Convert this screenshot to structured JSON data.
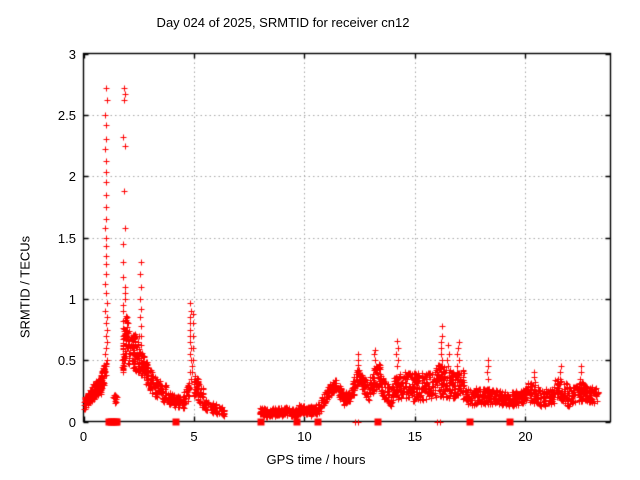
{
  "chart_data": {
    "type": "scatter",
    "title": "Day 024 of 2025, SRMTID for receiver cn12",
    "xlabel": "GPS time / hours",
    "ylabel": "SRMTID / TECUs",
    "xlim": [
      0,
      23.85
    ],
    "ylim": [
      0,
      3
    ],
    "xticks": [
      0,
      5,
      10,
      15,
      20
    ],
    "yticks": [
      0,
      0.5,
      1,
      1.5,
      2,
      2.5,
      3
    ],
    "ytick_labels": [
      "0",
      "0.5",
      "1",
      "1.5",
      "2",
      "2.5",
      "3"
    ],
    "xtick_labels": [
      "0",
      "5",
      "10",
      "15",
      "20"
    ],
    "grid": "dotted",
    "grid_color": "#a6a6a6",
    "frame_color": "#000000",
    "background": "#ffffff",
    "marker": "plus",
    "marker_color": "#ff0000",
    "series_name": "SRMTID",
    "max_value": 2.73,
    "data_x_range": [
      0,
      23.3
    ],
    "data_gap_hours": [
      6.4,
      7.95
    ],
    "scatter_bands_format": "[x_start, x_end, n_points, y_start, y_end, y_spread]",
    "scatter_bands": [
      [
        0.02,
        0.35,
        45,
        0.14,
        0.22,
        0.05
      ],
      [
        0.3,
        0.8,
        70,
        0.22,
        0.3,
        0.07
      ],
      [
        0.78,
        1.02,
        45,
        0.3,
        0.43,
        0.09
      ],
      [
        1.3,
        1.52,
        12,
        0.17,
        0.2,
        0.04
      ],
      [
        1.75,
        2.0,
        50,
        0.55,
        0.78,
        0.18
      ],
      [
        2.0,
        2.5,
        80,
        0.6,
        0.55,
        0.15
      ],
      [
        2.5,
        3.1,
        90,
        0.5,
        0.32,
        0.1
      ],
      [
        3.1,
        3.75,
        70,
        0.3,
        0.22,
        0.08
      ],
      [
        3.75,
        4.4,
        60,
        0.2,
        0.15,
        0.05
      ],
      [
        4.45,
        4.8,
        35,
        0.15,
        0.25,
        0.07
      ],
      [
        4.95,
        5.45,
        60,
        0.32,
        0.18,
        0.1
      ],
      [
        5.45,
        6.4,
        70,
        0.14,
        0.07,
        0.04
      ],
      [
        7.95,
        8.15,
        15,
        0.09,
        0.08,
        0.03
      ],
      [
        8.1,
        9.0,
        90,
        0.07,
        0.08,
        0.035
      ],
      [
        9.0,
        9.7,
        70,
        0.09,
        0.07,
        0.035
      ],
      [
        9.7,
        10.3,
        60,
        0.1,
        0.09,
        0.04
      ],
      [
        10.3,
        10.75,
        40,
        0.08,
        0.12,
        0.04
      ],
      [
        10.75,
        11.35,
        60,
        0.15,
        0.3,
        0.05
      ],
      [
        11.35,
        11.75,
        45,
        0.3,
        0.2,
        0.05
      ],
      [
        11.75,
        12.15,
        40,
        0.18,
        0.22,
        0.05
      ],
      [
        12.15,
        12.5,
        45,
        0.25,
        0.4,
        0.07
      ],
      [
        12.5,
        12.95,
        45,
        0.35,
        0.22,
        0.07
      ],
      [
        12.95,
        13.45,
        60,
        0.3,
        0.4,
        0.1
      ],
      [
        13.45,
        13.95,
        50,
        0.3,
        0.18,
        0.08
      ],
      [
        13.95,
        14.45,
        60,
        0.25,
        0.3,
        0.1
      ],
      [
        14.45,
        15.1,
        80,
        0.3,
        0.28,
        0.12
      ],
      [
        15.1,
        15.95,
        90,
        0.28,
        0.3,
        0.12
      ],
      [
        15.95,
        16.6,
        80,
        0.35,
        0.3,
        0.13
      ],
      [
        16.6,
        17.25,
        80,
        0.3,
        0.3,
        0.12
      ],
      [
        17.25,
        17.7,
        40,
        0.22,
        0.18,
        0.07
      ],
      [
        17.7,
        18.6,
        90,
        0.2,
        0.2,
        0.07
      ],
      [
        18.6,
        19.4,
        80,
        0.2,
        0.18,
        0.06
      ],
      [
        19.4,
        20.1,
        70,
        0.18,
        0.22,
        0.06
      ],
      [
        20.1,
        20.7,
        60,
        0.25,
        0.2,
        0.08
      ],
      [
        20.7,
        21.3,
        60,
        0.18,
        0.22,
        0.07
      ],
      [
        21.3,
        21.9,
        60,
        0.28,
        0.22,
        0.09
      ],
      [
        21.9,
        22.6,
        70,
        0.2,
        0.25,
        0.08
      ],
      [
        22.6,
        23.3,
        60,
        0.25,
        0.2,
        0.07
      ]
    ],
    "scatter_columns": [
      {
        "x": 1.02,
        "x_spread": 0.05,
        "ys": [
          0.5,
          0.55,
          0.6,
          0.65,
          0.7,
          0.75,
          0.8,
          0.85,
          0.9,
          0.97,
          1.05,
          1.12,
          1.2,
          1.28,
          1.35,
          1.43,
          1.5,
          1.58,
          1.65,
          1.75,
          1.85,
          1.95,
          2.03,
          2.12,
          2.22,
          2.3,
          2.42,
          2.5,
          2.62,
          2.72
        ]
      },
      {
        "x": 1.85,
        "x_spread": 0.06,
        "ys": [
          0.5,
          0.55,
          0.62,
          0.68,
          0.75,
          0.82,
          0.9,
          0.95,
          1.0,
          1.05,
          1.1,
          1.18,
          1.3,
          1.45,
          1.58,
          1.88,
          2.25,
          2.32,
          2.62,
          2.67,
          2.72
        ]
      },
      {
        "x": 2.57,
        "x_spread": 0.03,
        "ys": [
          0.55,
          0.62,
          0.7,
          0.78,
          0.85,
          0.92,
          1.0,
          1.1,
          1.2,
          1.3
        ]
      },
      {
        "x": 4.85,
        "x_spread": 0.05,
        "ys": [
          0.35,
          0.4,
          0.45,
          0.5,
          0.55,
          0.6,
          0.65,
          0.7,
          0.75,
          0.8,
          0.85,
          0.9,
          0.97
        ]
      },
      {
        "x": 4.95,
        "x_spread": 0.02,
        "ys": [
          0.4,
          0.5,
          0.6,
          0.7,
          0.8,
          0.88
        ]
      },
      {
        "x": 12.42,
        "x_spread": 0.04,
        "ys": [
          0.42,
          0.46,
          0.5,
          0.55
        ]
      },
      {
        "x": 13.2,
        "x_spread": 0.05,
        "ys": [
          0.45,
          0.5,
          0.55,
          0.58
        ]
      },
      {
        "x": 14.2,
        "x_spread": 0.04,
        "ys": [
          0.45,
          0.5,
          0.55,
          0.6,
          0.66
        ]
      },
      {
        "x": 16.2,
        "x_spread": 0.04,
        "ys": [
          0.45,
          0.5,
          0.55,
          0.6,
          0.65,
          0.7,
          0.78
        ]
      },
      {
        "x": 16.5,
        "x_spread": 0.05,
        "ys": [
          0.45,
          0.5,
          0.55,
          0.62
        ]
      },
      {
        "x": 16.95,
        "x_spread": 0.05,
        "ys": [
          0.45,
          0.5,
          0.55,
          0.6,
          0.65
        ]
      },
      {
        "x": 18.3,
        "x_spread": 0.03,
        "ys": [
          0.35,
          0.4,
          0.45,
          0.5
        ]
      },
      {
        "x": 20.4,
        "x_spread": 0.04,
        "ys": [
          0.32,
          0.36,
          0.4
        ]
      },
      {
        "x": 21.6,
        "x_spread": 0.04,
        "ys": [
          0.35,
          0.4,
          0.45
        ]
      },
      {
        "x": 22.5,
        "x_spread": 0.03,
        "ys": [
          0.35,
          0.4,
          0.45
        ]
      }
    ],
    "zero_square_markers_x": [
      1.17,
      1.24,
      1.31,
      1.38,
      1.45,
      1.52,
      4.2,
      8.05,
      9.68,
      10.63,
      13.35,
      17.5,
      19.3
    ],
    "zero_plus_markers_x": [
      12.3,
      12.42,
      16.0,
      16.12
    ]
  }
}
